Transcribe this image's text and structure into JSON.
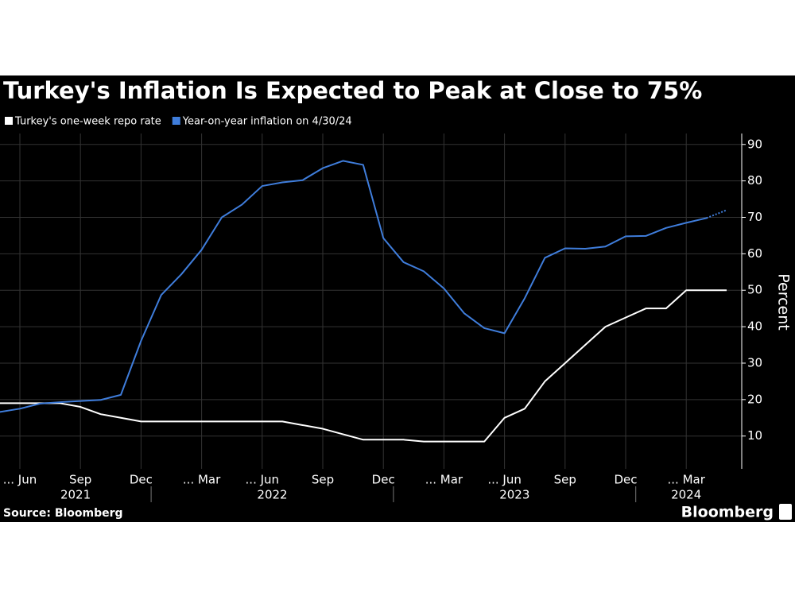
{
  "chart_data": {
    "type": "line",
    "title": "Turkey's Inflation Is Expected to Peak at Close to 75%",
    "y_axis_label": "Percent",
    "source": "Source: Bloomberg",
    "brand": "Bloomberg",
    "x": [
      "2021-05",
      "2021-06",
      "2021-07",
      "2021-08",
      "2021-09",
      "2021-10",
      "2021-11",
      "2021-12",
      "2022-01",
      "2022-02",
      "2022-03",
      "2022-04",
      "2022-05",
      "2022-06",
      "2022-07",
      "2022-08",
      "2022-09",
      "2022-10",
      "2022-11",
      "2022-12",
      "2023-01",
      "2023-02",
      "2023-03",
      "2023-04",
      "2023-05",
      "2023-06",
      "2023-07",
      "2023-08",
      "2023-09",
      "2023-10",
      "2023-11",
      "2023-12",
      "2024-01",
      "2024-02",
      "2024-03",
      "2024-04",
      "2024-05"
    ],
    "years": [
      "2021",
      "2022",
      "2023",
      "2024"
    ],
    "xticks": [
      {
        "value": "2021-06",
        "label": "... Jun"
      },
      {
        "value": "2021-09",
        "label": "Sep"
      },
      {
        "value": "2021-12",
        "label": "Dec"
      },
      {
        "value": "2022-03",
        "label": "... Mar"
      },
      {
        "value": "2022-06",
        "label": "... Jun"
      },
      {
        "value": "2022-09",
        "label": "Sep"
      },
      {
        "value": "2022-12",
        "label": "Dec"
      },
      {
        "value": "2023-03",
        "label": "... Mar"
      },
      {
        "value": "2023-06",
        "label": "... Jun"
      },
      {
        "value": "2023-09",
        "label": "Sep"
      },
      {
        "value": "2023-12",
        "label": "Dec"
      },
      {
        "value": "2024-03",
        "label": "... Mar"
      }
    ],
    "ylim": [
      1,
      93
    ],
    "yticks": [
      10,
      20,
      30,
      40,
      50,
      60,
      70,
      80,
      90
    ],
    "grid": true,
    "series": [
      {
        "name": "Turkey's one-week repo rate",
        "color": "#ffffff",
        "values": [
          19,
          19,
          19,
          19,
          18,
          16,
          15,
          14,
          14,
          14,
          14,
          14,
          14,
          14,
          14,
          13,
          12,
          10.5,
          9,
          9,
          9,
          8.5,
          8.5,
          8.5,
          8.5,
          15,
          17.5,
          25,
          30,
          35,
          40,
          42.5,
          45,
          45,
          50,
          50,
          50
        ]
      },
      {
        "name": "Year-on-year inflation on 4/30/24",
        "color": "#3f7ddb",
        "dotted_from": "2024-04",
        "values": [
          16.6,
          17.5,
          18.9,
          19.3,
          19.6,
          19.9,
          21.3,
          36.1,
          48.7,
          54.4,
          61.1,
          70.0,
          73.5,
          78.6,
          79.6,
          80.2,
          83.5,
          85.5,
          84.4,
          64.3,
          57.7,
          55.2,
          50.5,
          43.7,
          39.6,
          38.2,
          47.8,
          58.9,
          61.5,
          61.4,
          62.0,
          64.8,
          64.9,
          67.1,
          68.5,
          69.8,
          72
        ]
      }
    ]
  }
}
